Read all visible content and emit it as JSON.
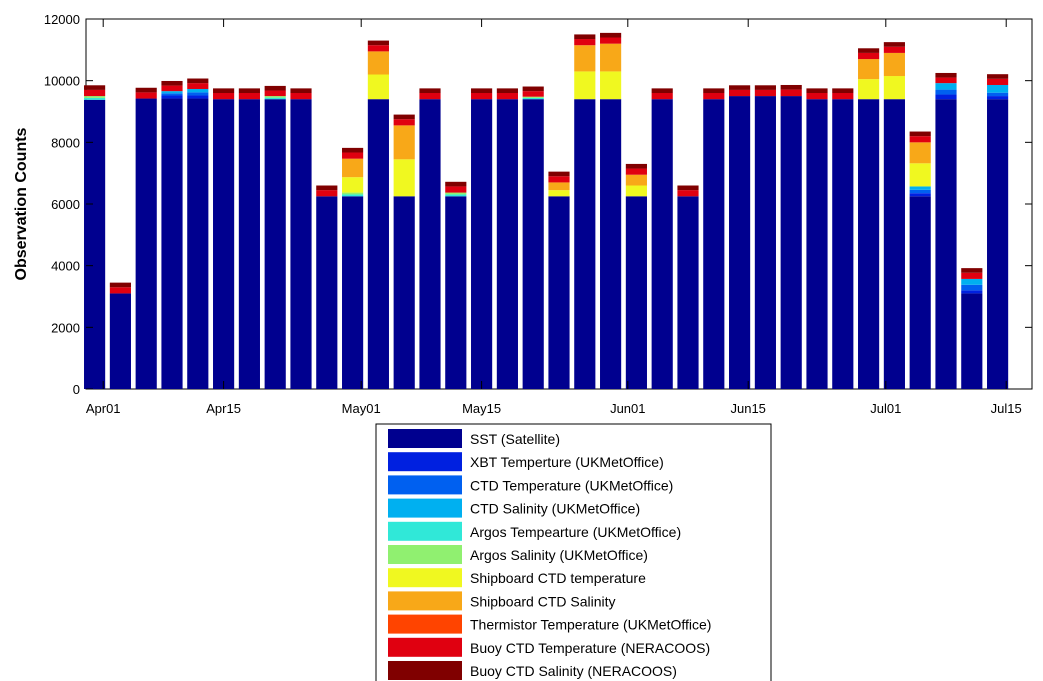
{
  "chart_data": {
    "type": "bar",
    "stacked": true,
    "title": "",
    "xlabel": "",
    "ylabel": "Observation Counts",
    "ylim": [
      0,
      12000
    ],
    "yticks": [
      0,
      2000,
      4000,
      6000,
      8000,
      10000,
      12000
    ],
    "grid": false,
    "legend_position": "bottom-center",
    "x_start": "2013-03-31",
    "x_step_days": 3,
    "xlim": [
      "2013-03-30",
      "2013-07-18"
    ],
    "xticks": [
      {
        "date": "2013-04-01",
        "label": "Apr01"
      },
      {
        "date": "2013-04-15",
        "label": "Apr15"
      },
      {
        "date": "2013-05-01",
        "label": "May01"
      },
      {
        "date": "2013-05-15",
        "label": "May15"
      },
      {
        "date": "2013-06-01",
        "label": "Jun01"
      },
      {
        "date": "2013-06-15",
        "label": "Jun15"
      },
      {
        "date": "2013-07-01",
        "label": "Jul01"
      },
      {
        "date": "2013-07-15",
        "label": "Jul15"
      }
    ],
    "x": [
      "2013-03-31",
      "2013-04-03",
      "2013-04-06",
      "2013-04-09",
      "2013-04-12",
      "2013-04-15",
      "2013-04-18",
      "2013-04-21",
      "2013-04-24",
      "2013-04-27",
      "2013-04-30",
      "2013-05-03",
      "2013-05-06",
      "2013-05-09",
      "2013-05-12",
      "2013-05-15",
      "2013-05-18",
      "2013-05-21",
      "2013-05-24",
      "2013-05-27",
      "2013-05-30",
      "2013-06-02",
      "2013-06-05",
      "2013-06-08",
      "2013-06-11",
      "2013-06-14",
      "2013-06-17",
      "2013-06-20",
      "2013-06-23",
      "2013-06-26",
      "2013-06-29",
      "2013-07-02",
      "2013-07-05",
      "2013-07-08",
      "2013-07-11",
      "2013-07-14"
    ],
    "series": [
      {
        "name": "SST (Satellite)",
        "color": "#00008f",
        "values": [
          9380,
          3100,
          9420,
          9420,
          9420,
          9400,
          9400,
          9400,
          9400,
          6250,
          6250,
          9400,
          6250,
          9400,
          6250,
          9400,
          9400,
          9400,
          6250,
          9400,
          9400,
          6250,
          9400,
          6250,
          9400,
          9500,
          9500,
          9500,
          9400,
          9400,
          9400,
          9400,
          6250,
          9400,
          3100,
          9400
        ]
      },
      {
        "name": "XBT Temperture (UKMetOffice)",
        "color": "#0020e0",
        "values": [
          0,
          0,
          0,
          100,
          100,
          0,
          0,
          0,
          0,
          0,
          0,
          0,
          0,
          0,
          0,
          0,
          0,
          0,
          0,
          0,
          0,
          0,
          0,
          0,
          0,
          0,
          0,
          0,
          0,
          0,
          0,
          0,
          100,
          150,
          100,
          100
        ]
      },
      {
        "name": "CTD Temperature (UKMetOffice)",
        "color": "#0060f0",
        "values": [
          0,
          0,
          0,
          70,
          100,
          0,
          0,
          0,
          0,
          0,
          0,
          0,
          0,
          0,
          0,
          0,
          0,
          0,
          0,
          0,
          0,
          0,
          0,
          0,
          0,
          0,
          0,
          0,
          0,
          0,
          0,
          0,
          110,
          160,
          180,
          110
        ]
      },
      {
        "name": "CTD Salinity (UKMetOffice)",
        "color": "#00b0f0",
        "values": [
          0,
          0,
          0,
          70,
          110,
          0,
          0,
          0,
          0,
          0,
          0,
          0,
          0,
          0,
          0,
          0,
          0,
          0,
          0,
          0,
          0,
          0,
          0,
          0,
          0,
          0,
          0,
          0,
          0,
          0,
          0,
          0,
          110,
          210,
          190,
          250
        ]
      },
      {
        "name": "Argos Tempearture (UKMetOffice)",
        "color": "#30e8d8",
        "values": [
          60,
          0,
          0,
          0,
          0,
          0,
          0,
          50,
          0,
          0,
          60,
          0,
          0,
          0,
          60,
          0,
          0,
          40,
          0,
          0,
          0,
          0,
          0,
          0,
          0,
          0,
          0,
          0,
          0,
          0,
          0,
          0,
          0,
          0,
          0,
          0
        ]
      },
      {
        "name": "Argos Salinity (UKMetOffice)",
        "color": "#90f070",
        "values": [
          60,
          0,
          0,
          0,
          0,
          0,
          0,
          50,
          0,
          0,
          60,
          0,
          0,
          0,
          60,
          0,
          0,
          40,
          0,
          0,
          0,
          0,
          0,
          0,
          0,
          0,
          0,
          0,
          0,
          0,
          0,
          0,
          0,
          0,
          0,
          0
        ]
      },
      {
        "name": "Shipboard CTD temperature",
        "color": "#f0f820",
        "values": [
          0,
          0,
          0,
          0,
          0,
          0,
          0,
          0,
          0,
          0,
          500,
          800,
          1200,
          0,
          0,
          0,
          0,
          0,
          200,
          900,
          900,
          350,
          0,
          0,
          0,
          0,
          0,
          0,
          0,
          0,
          650,
          750,
          750,
          0,
          0,
          0
        ]
      },
      {
        "name": "Shipboard CTD Salinity",
        "color": "#f8a818",
        "values": [
          0,
          0,
          0,
          0,
          0,
          0,
          0,
          0,
          0,
          0,
          600,
          750,
          1100,
          0,
          0,
          0,
          0,
          0,
          250,
          850,
          900,
          350,
          0,
          0,
          0,
          0,
          0,
          0,
          0,
          0,
          650,
          750,
          680,
          0,
          0,
          0
        ]
      },
      {
        "name": "Thermistor Temperature (UKMetOffice)",
        "color": "#ff4400",
        "values": [
          0,
          0,
          0,
          0,
          0,
          0,
          0,
          0,
          0,
          0,
          0,
          0,
          0,
          0,
          0,
          0,
          0,
          0,
          0,
          0,
          0,
          0,
          0,
          0,
          0,
          0,
          0,
          0,
          0,
          0,
          0,
          0,
          0,
          0,
          0,
          0
        ]
      },
      {
        "name": "Buoy CTD Temperature (NERACOOS)",
        "color": "#e00010",
        "values": [
          200,
          200,
          200,
          180,
          190,
          200,
          200,
          180,
          200,
          200,
          200,
          200,
          200,
          200,
          200,
          200,
          200,
          180,
          200,
          200,
          200,
          200,
          200,
          200,
          200,
          200,
          200,
          210,
          200,
          200,
          200,
          200,
          200,
          180,
          200,
          200
        ]
      },
      {
        "name": "Buoy CTD Salinity (NERACOOS)",
        "color": "#800000",
        "values": [
          150,
          150,
          150,
          150,
          150,
          150,
          150,
          150,
          150,
          150,
          150,
          150,
          150,
          150,
          150,
          150,
          150,
          150,
          150,
          150,
          150,
          150,
          150,
          150,
          150,
          150,
          150,
          150,
          150,
          150,
          150,
          150,
          150,
          150,
          150,
          150
        ]
      }
    ]
  }
}
